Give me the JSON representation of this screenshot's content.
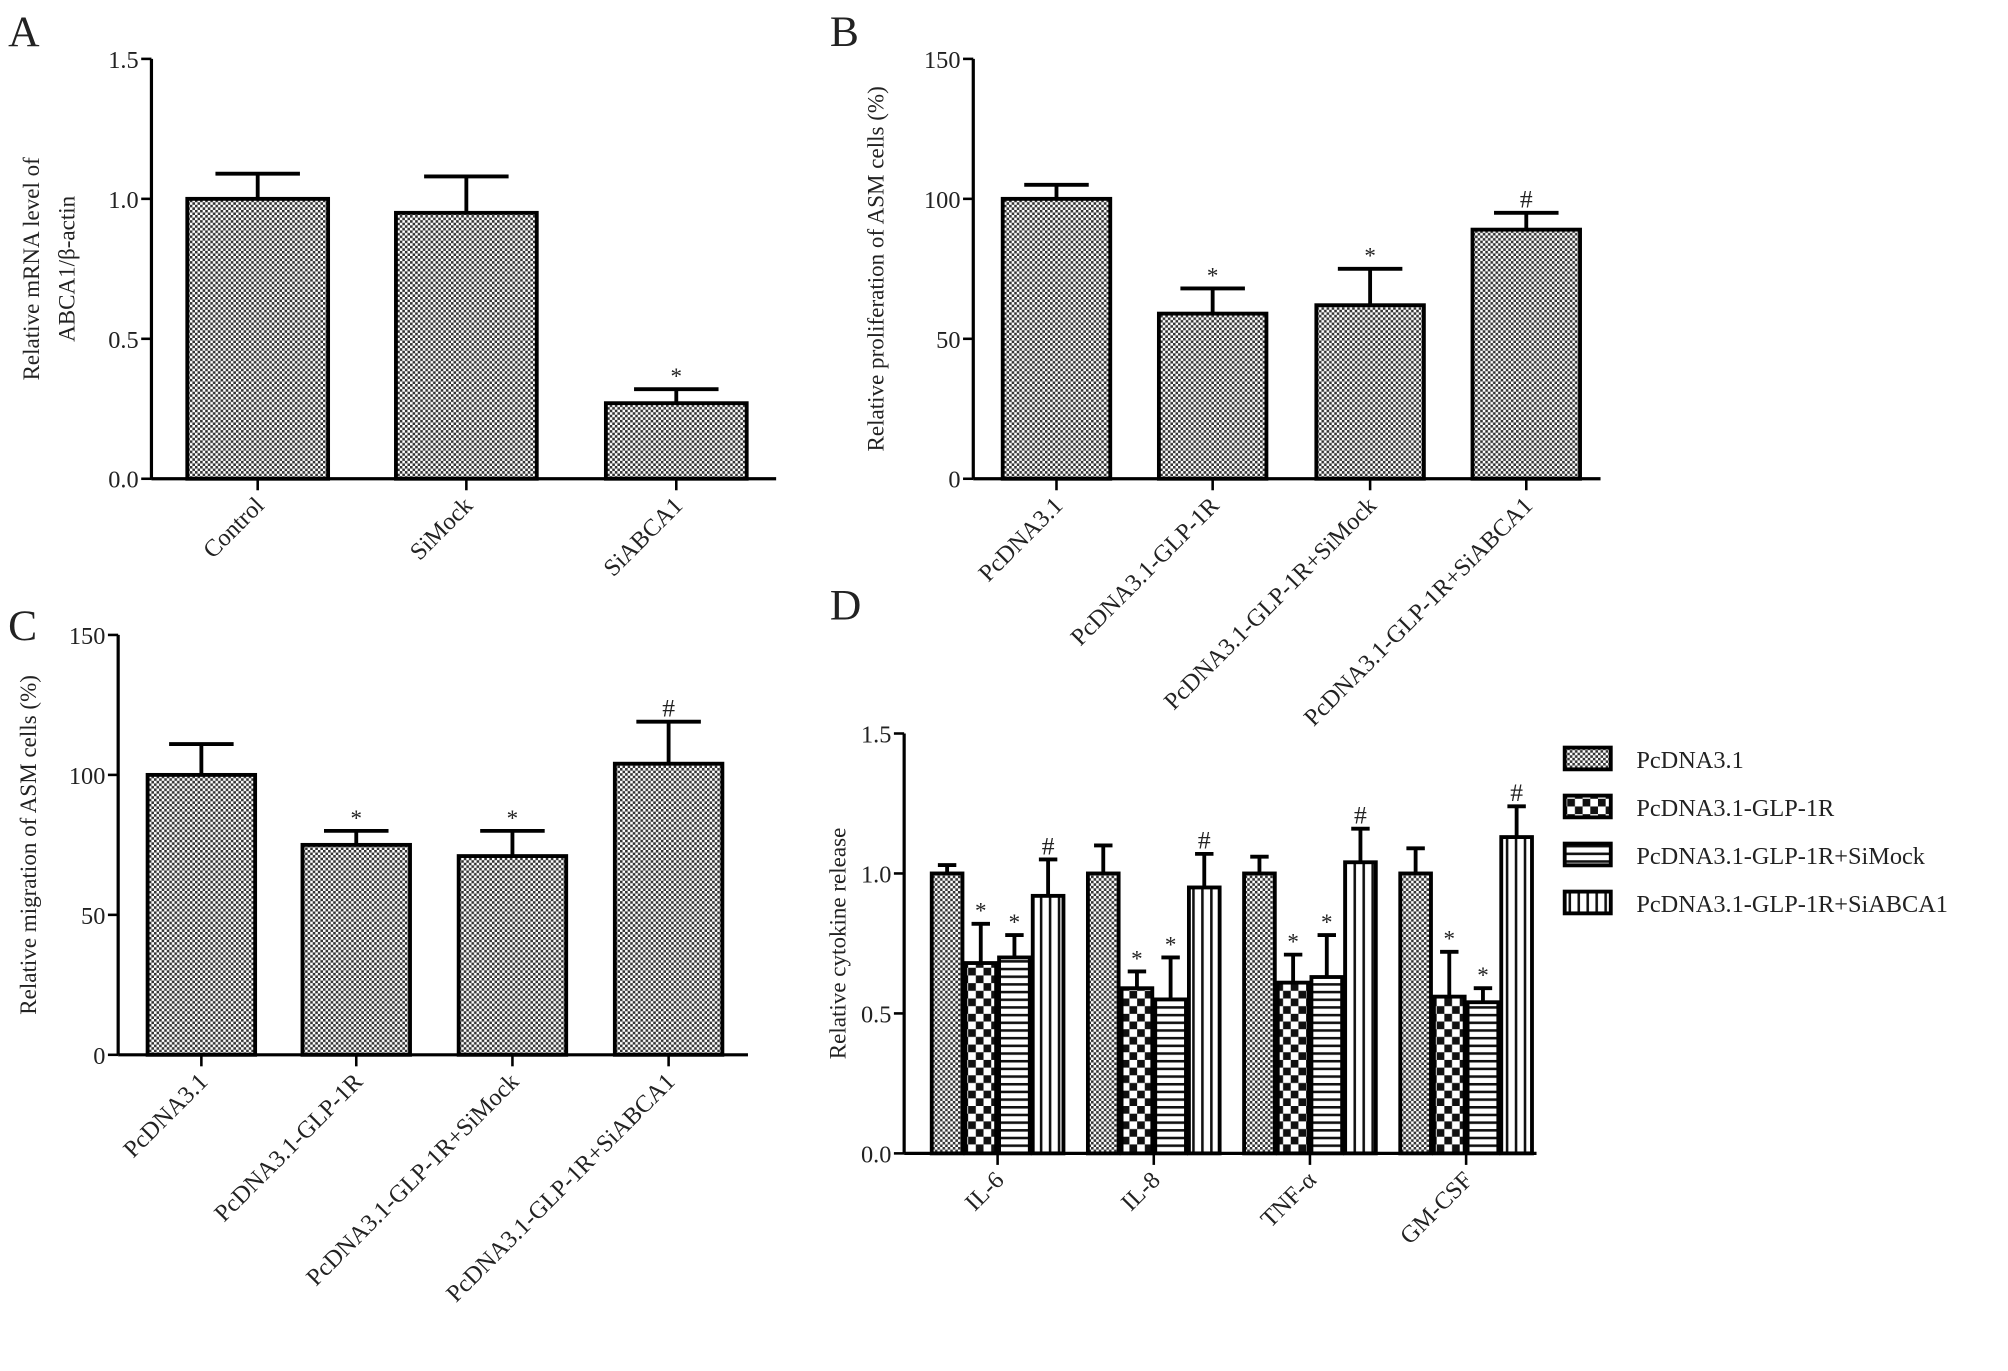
{
  "chart_data": [
    {
      "panel": "A",
      "type": "bar",
      "ylabel": [
        "Relative mRNA level of",
        "ABCA1/β-actin"
      ],
      "ylim": [
        0,
        1.5
      ],
      "yticks": [
        "0.0",
        "0.5",
        "1.0",
        "1.5"
      ],
      "ytick_values": [
        0,
        0.5,
        1.0,
        1.5
      ],
      "categories": [
        "Control",
        "SiMock",
        "SiABCA1"
      ],
      "values": [
        1.0,
        0.95,
        0.27
      ],
      "errors": [
        0.09,
        0.13,
        0.05
      ],
      "marks": [
        "",
        "",
        "*"
      ]
    },
    {
      "panel": "B",
      "type": "bar",
      "ylabel": [
        "Relative proliferation of ASM cells (%)"
      ],
      "ylim": [
        0,
        150
      ],
      "yticks": [
        "0",
        "50",
        "100",
        "150"
      ],
      "ytick_values": [
        0,
        50,
        100,
        150
      ],
      "categories": [
        "PcDNA3.1",
        "PcDNA3.1-GLP-1R",
        "PcDNA3.1-GLP-1R+SiMock",
        "PcDNA3.1-GLP-1R+SiABCA1"
      ],
      "values": [
        100,
        59,
        62,
        89
      ],
      "errors": [
        5,
        9,
        13,
        6
      ],
      "marks": [
        "",
        "*",
        "*",
        "#"
      ]
    },
    {
      "panel": "C",
      "type": "bar",
      "ylabel": [
        "Relative migration of ASM cells (%)"
      ],
      "ylim": [
        0,
        150
      ],
      "yticks": [
        "0",
        "50",
        "100",
        "150"
      ],
      "ytick_values": [
        0,
        50,
        100,
        150
      ],
      "categories": [
        "PcDNA3.1",
        "PcDNA3.1-GLP-1R",
        "PcDNA3.1-GLP-1R+SiMock",
        "PcDNA3.1-GLP-1R+SiABCA1"
      ],
      "values": [
        100,
        75,
        71,
        104
      ],
      "errors": [
        11,
        5,
        9,
        15
      ],
      "marks": [
        "",
        "*",
        "*",
        "#"
      ]
    },
    {
      "panel": "D",
      "type": "bar",
      "ylabel": [
        "Relative cytokine release"
      ],
      "ylim": [
        0,
        1.5
      ],
      "yticks": [
        "0.0",
        "0.5",
        "1.0",
        "1.5"
      ],
      "ytick_values": [
        0,
        0.5,
        1.0,
        1.5
      ],
      "categories": [
        "IL-6",
        "IL-8",
        "TNF-α",
        "GM-CSF"
      ],
      "legend_position": "right",
      "series": [
        {
          "name": "PcDNA3.1",
          "values": [
            1.0,
            1.0,
            1.0,
            1.0
          ],
          "errors": [
            0.03,
            0.1,
            0.06,
            0.09
          ],
          "marks": [
            "",
            "",
            "",
            ""
          ]
        },
        {
          "name": "PcDNA3.1-GLP-1R",
          "values": [
            0.68,
            0.59,
            0.61,
            0.56
          ],
          "errors": [
            0.14,
            0.06,
            0.1,
            0.16
          ],
          "marks": [
            "*",
            "*",
            "*",
            "*"
          ]
        },
        {
          "name": "PcDNA3.1-GLP-1R+SiMock",
          "values": [
            0.7,
            0.55,
            0.63,
            0.54
          ],
          "errors": [
            0.08,
            0.15,
            0.15,
            0.05
          ],
          "marks": [
            "*",
            "*",
            "*",
            "*"
          ]
        },
        {
          "name": "PcDNA3.1-GLP-1R+SiABCA1",
          "values": [
            0.92,
            0.95,
            1.04,
            1.13
          ],
          "errors": [
            0.13,
            0.12,
            0.12,
            0.11
          ],
          "marks": [
            "#",
            "#",
            "#",
            "#"
          ]
        }
      ]
    }
  ]
}
